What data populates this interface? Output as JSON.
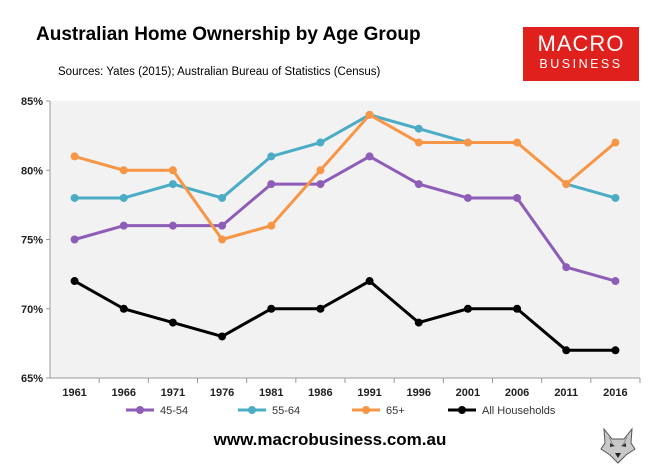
{
  "header": {
    "title": "Australian Home Ownership by Age Group",
    "subtitle": "Sources: Yates (2015); Australian Bureau of Statistics (Census)"
  },
  "logo": {
    "line1": "MACRO",
    "line2": "BUSINESS",
    "color": "#e0201d"
  },
  "footer": {
    "website": "www.macrobusiness.com.au"
  },
  "chart_data": {
    "type": "line",
    "categories": [
      "1961",
      "1966",
      "1971",
      "1976",
      "1981",
      "1986",
      "1991",
      "1996",
      "2001",
      "2006",
      "2011",
      "2016"
    ],
    "ylim": [
      65,
      85
    ],
    "yticks": [
      65,
      70,
      75,
      80,
      85
    ],
    "ytick_labels": [
      "65%",
      "70%",
      "75%",
      "80%",
      "85%"
    ],
    "grid": false,
    "background": "#f2f2f2",
    "legend_position": "bottom",
    "series": [
      {
        "name": "45-54",
        "color": "#8e5db8",
        "values": [
          75,
          76,
          76,
          76,
          79,
          79,
          81,
          79,
          78,
          78,
          73,
          72
        ]
      },
      {
        "name": "55-64",
        "color": "#4bacc6",
        "values": [
          78,
          78,
          79,
          78,
          81,
          82,
          84,
          83,
          82,
          null,
          79,
          78
        ]
      },
      {
        "name": "65+",
        "color": "#f79646",
        "values": [
          81,
          80,
          80,
          75,
          76,
          80,
          84,
          82,
          82,
          82,
          79,
          82
        ]
      },
      {
        "name": "All Households",
        "color": "#000000",
        "values": [
          72,
          70,
          69,
          68,
          70,
          70,
          72,
          69,
          70,
          70,
          67,
          67
        ]
      }
    ]
  }
}
